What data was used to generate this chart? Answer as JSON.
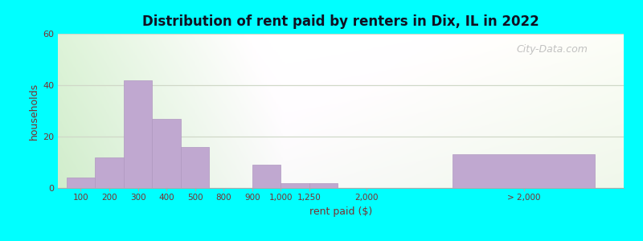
{
  "title": "Distribution of rent paid by renters in Dix, IL in 2022",
  "xlabel": "rent paid ($)",
  "ylabel": "households",
  "background_outer": "#00FFFF",
  "bar_color": "#c0a8d0",
  "bar_edge_color": "#b098c0",
  "categories": [
    "100",
    "200",
    "300",
    "400",
    "500",
    "800",
    "900",
    "1,000",
    "1,250",
    "2,000",
    "> 2,000"
  ],
  "values": [
    4,
    12,
    42,
    27,
    16,
    0,
    9,
    2,
    2,
    0,
    13
  ],
  "ylim": [
    0,
    60
  ],
  "yticks": [
    0,
    20,
    40,
    60
  ],
  "grid_color": "#d0d8c8",
  "title_color": "#111122",
  "axis_label_color": "#7a3030",
  "tick_label_color": "#7a3030",
  "watermark": "City-Data.com",
  "figsize": [
    8.0,
    3.0
  ],
  "dpi": 100,
  "bar_positions": [
    0,
    1,
    2,
    3,
    4,
    5.5,
    6.5,
    7.5,
    8.5,
    10.5,
    13.5
  ],
  "bar_widths": [
    1,
    1,
    1,
    1,
    1,
    1,
    1,
    1,
    1,
    1,
    5.0
  ],
  "tick_positions": [
    0.5,
    1.5,
    2.5,
    3.5,
    4.5,
    5.5,
    6.5,
    7.5,
    8.5,
    10.5,
    16.0
  ],
  "xlim": [
    -0.3,
    19.5
  ]
}
